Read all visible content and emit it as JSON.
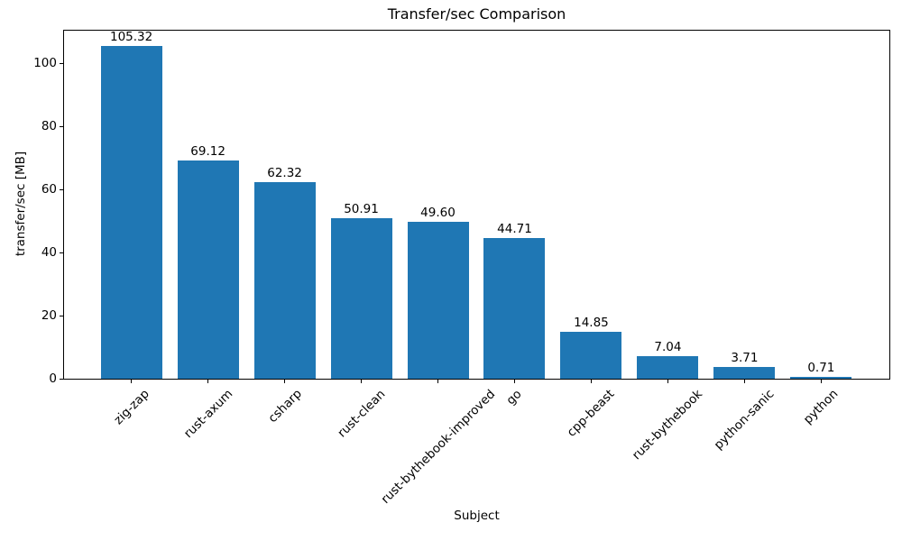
{
  "chart_data": {
    "type": "bar",
    "title": "Transfer/sec Comparison",
    "xlabel": "Subject",
    "ylabel": "transfer/sec [MB]",
    "categories": [
      "zig-zap",
      "rust-axum",
      "csharp",
      "rust-clean",
      "rust-bythebook-improved",
      "go",
      "cpp-beast",
      "rust-bythebook",
      "python-sanic",
      "python"
    ],
    "values": [
      105.32,
      69.12,
      62.32,
      50.91,
      49.6,
      44.71,
      14.85,
      7.04,
      3.71,
      0.71
    ],
    "bar_value_labels": [
      "105.32",
      "69.12",
      "62.32",
      "50.91",
      "49.60",
      "44.71",
      "14.85",
      "7.04",
      "3.71",
      "0.71"
    ],
    "yticks": [
      0,
      20,
      40,
      60,
      80,
      100
    ],
    "ylim": [
      0,
      110.6
    ],
    "xtick_rotation_deg": 45,
    "bar_color": "#1f77b4",
    "axis_color": "#000000",
    "text_color": "#000000",
    "background_color": "#ffffff",
    "grid": false,
    "legend_position": "none"
  }
}
